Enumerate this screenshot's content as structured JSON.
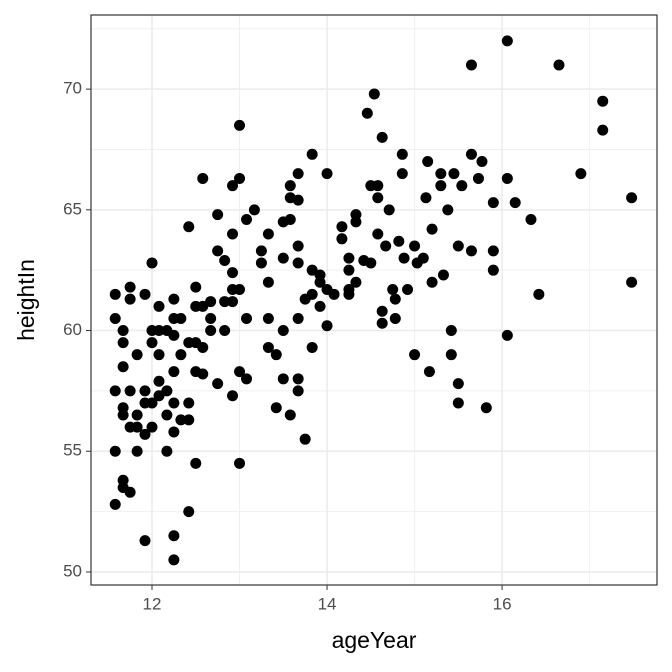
{
  "chart_data": {
    "type": "scatter",
    "x_label": "ageYear",
    "y_label": "heightIn",
    "color": "#000000",
    "grid": true,
    "xlim": [
      11.303,
      17.77
    ],
    "xticks": [
      12,
      14,
      16
    ],
    "x_minor_ticks": [
      13,
      15,
      17
    ],
    "ylim": [
      49.46,
      73.07
    ],
    "yticks": [
      50,
      55,
      60,
      65,
      70
    ],
    "y_minor_ticks": [
      52.5,
      57.5,
      62.5,
      67.5,
      72.5
    ],
    "x": [
      11.58,
      11.58,
      11.67,
      11.67,
      11.75,
      11.75,
      11.92,
      12.0,
      11.58,
      11.58,
      11.58,
      11.67,
      11.67,
      11.67,
      11.75,
      11.75,
      11.83,
      11.83,
      11.83,
      11.67,
      11.67,
      11.75,
      11.92,
      11.83,
      11.92,
      11.92,
      11.92,
      12.0,
      12.0,
      12.0,
      12.0,
      12.08,
      12.08,
      12.08,
      12.08,
      12.08,
      12.17,
      12.17,
      12.17,
      12.17,
      12.25,
      12.25,
      12.25,
      12.25,
      12.25,
      12.25,
      12.25,
      12.25,
      12.33,
      12.33,
      12.33,
      12.42,
      12.42,
      12.42,
      12.42,
      12.42,
      12.5,
      12.5,
      12.5,
      12.5,
      12.5,
      12.58,
      12.58,
      12.58,
      12.58,
      12.67,
      12.67,
      12.67,
      12.75,
      12.75,
      12.75,
      12.83,
      12.83,
      12.83,
      12.92,
      12.92,
      12.92,
      12.92,
      12.92,
      12.92,
      13.0,
      13.0,
      13.0,
      13.0,
      13.0,
      13.08,
      13.08,
      13.08,
      13.17,
      13.25,
      13.25,
      13.33,
      13.33,
      13.33,
      13.33,
      13.42,
      13.42,
      13.5,
      13.5,
      13.5,
      13.5,
      13.58,
      13.58,
      13.58,
      13.58,
      13.67,
      13.67,
      13.67,
      13.67,
      13.67,
      13.67,
      13.67,
      13.75,
      13.75,
      13.83,
      13.83,
      13.83,
      13.83,
      13.92,
      13.92,
      13.92,
      14.0,
      14.0,
      14.0,
      14.08,
      14.17,
      14.17,
      14.25,
      14.25,
      14.25,
      14.25,
      14.33,
      14.33,
      14.33,
      14.42,
      14.46,
      14.5,
      14.54,
      14.5,
      14.58,
      14.58,
      14.58,
      14.63,
      14.63,
      14.63,
      14.67,
      14.71,
      14.75,
      14.78,
      14.78,
      14.82,
      14.86,
      14.86,
      14.88,
      14.92,
      15.0,
      15.0,
      15.03,
      15.1,
      15.13,
      15.15,
      15.17,
      15.2,
      15.2,
      15.3,
      15.3,
      15.33,
      15.38,
      15.42,
      15.42,
      15.45,
      15.5,
      15.5,
      15.5,
      15.54,
      15.65,
      15.65,
      15.65,
      15.73,
      15.77,
      15.82,
      15.9,
      15.9,
      15.9,
      16.06,
      16.06,
      16.06,
      16.15,
      16.33,
      16.42,
      16.65,
      16.9,
      17.15,
      17.15,
      17.48,
      17.48
    ],
    "values": [
      61.5,
      60.5,
      60.0,
      59.5,
      61.3,
      61.8,
      61.5,
      62.8,
      57.5,
      55.0,
      52.8,
      58.5,
      56.8,
      56.5,
      57.5,
      56.0,
      56.5,
      56.0,
      55.0,
      53.8,
      53.5,
      53.3,
      51.3,
      59.0,
      57.5,
      57.0,
      55.7,
      60.0,
      59.5,
      57.0,
      56.0,
      61.0,
      60.0,
      59.0,
      57.9,
      57.3,
      57.5,
      56.5,
      55.0,
      60.0,
      61.3,
      60.5,
      59.8,
      58.3,
      57.0,
      55.8,
      51.5,
      50.5,
      59.0,
      60.5,
      56.3,
      59.5,
      57.0,
      56.3,
      64.3,
      52.5,
      61.8,
      61.0,
      59.5,
      58.3,
      54.5,
      66.3,
      61.0,
      59.3,
      58.2,
      61.2,
      60.5,
      60.0,
      64.8,
      63.3,
      57.8,
      62.9,
      61.2,
      60.0,
      66.0,
      64.0,
      62.4,
      61.7,
      61.2,
      57.3,
      66.3,
      68.5,
      61.7,
      58.3,
      54.5,
      64.6,
      60.5,
      58.0,
      65.0,
      63.3,
      62.8,
      64.0,
      62.0,
      60.5,
      59.3,
      59.0,
      56.8,
      60.0,
      63.0,
      64.5,
      58.0,
      66.0,
      65.5,
      64.6,
      56.5,
      66.5,
      65.4,
      63.5,
      62.8,
      60.5,
      58.0,
      57.5,
      55.5,
      61.3,
      61.5,
      62.5,
      59.3,
      67.3,
      62.3,
      62.0,
      61.0,
      66.5,
      61.7,
      60.2,
      61.5,
      64.3,
      63.8,
      63.0,
      62.5,
      61.7,
      61.5,
      62.0,
      64.5,
      64.8,
      62.9,
      69.0,
      66.0,
      69.8,
      62.8,
      66.0,
      65.5,
      64.0,
      68.0,
      60.8,
      60.3,
      63.5,
      65.0,
      61.7,
      61.3,
      60.5,
      63.7,
      67.3,
      66.5,
      63.0,
      61.7,
      63.5,
      59.0,
      62.8,
      63.0,
      65.5,
      67.0,
      58.3,
      62.0,
      64.2,
      66.5,
      66.0,
      62.3,
      65.0,
      60.0,
      59.0,
      66.5,
      57.0,
      57.8,
      63.5,
      66.0,
      71.0,
      67.3,
      63.3,
      66.3,
      67.0,
      56.8,
      62.5,
      63.3,
      65.3,
      72.0,
      59.8,
      66.3,
      65.3,
      64.6,
      61.5,
      71.0,
      66.5,
      69.5,
      68.3,
      65.5,
      62.0
    ]
  }
}
